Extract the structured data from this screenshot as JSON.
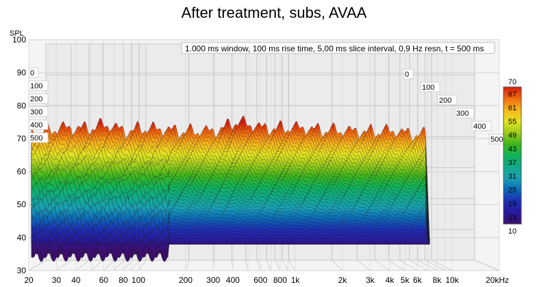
{
  "chart_data": {
    "type": "waterfall",
    "title": "After treatment, subs, AVAA",
    "ylabel": "SPL",
    "xlabel": "",
    "info_text": "1.000 ms window, 100 ms rise time, 5,00 ms slice interval, 0,9 Hz resn, t = 500 ms",
    "x_scale": "log",
    "xlim": [
      20,
      20000
    ],
    "ylim": [
      30,
      100
    ],
    "x_ticks": [
      {
        "value": 20,
        "label": "20"
      },
      {
        "value": 30,
        "label": "30"
      },
      {
        "value": 40,
        "label": "40"
      },
      {
        "value": 60,
        "label": "60"
      },
      {
        "value": 80,
        "label": "80"
      },
      {
        "value": 100,
        "label": "100"
      },
      {
        "value": 200,
        "label": "200"
      },
      {
        "value": 300,
        "label": "300"
      },
      {
        "value": 400,
        "label": "400"
      },
      {
        "value": 600,
        "label": "600"
      },
      {
        "value": 800,
        "label": "800"
      },
      {
        "value": 1000,
        "label": "1k"
      },
      {
        "value": 2000,
        "label": "2k"
      },
      {
        "value": 3000,
        "label": "3k"
      },
      {
        "value": 4000,
        "label": "4k"
      },
      {
        "value": 5000,
        "label": "5k"
      },
      {
        "value": 6000,
        "label": "6k"
      },
      {
        "value": 8000,
        "label": "8k"
      },
      {
        "value": 10000,
        "label": "10k"
      },
      {
        "value": 20000,
        "label": "20kHz"
      }
    ],
    "y_ticks": [
      30,
      40,
      50,
      60,
      70,
      80,
      90,
      100
    ],
    "time_axis_labels": [
      "0",
      "100",
      "200",
      "300",
      "400",
      "500"
    ],
    "colorbar": {
      "min_label": "10",
      "max_label": "70",
      "labels": [
        "67",
        "61",
        "55",
        "49",
        "43",
        "37",
        "31",
        "25",
        "19",
        "13"
      ],
      "colors": [
        "#d91c0b",
        "#f06a10",
        "#f5b61e",
        "#e4e223",
        "#9dcc1e",
        "#3fb51e",
        "#12b25a",
        "#12a98a",
        "#1aa0b4",
        "#0d68b6",
        "#1d2fb3",
        "#2a1a9d",
        "#3b0e6a"
      ]
    },
    "front_slice_peak_levels": [
      {
        "freq": 20,
        "spl": 71
      },
      {
        "freq": 30,
        "spl": 73
      },
      {
        "freq": 45,
        "spl": 73
      },
      {
        "freq": 60,
        "spl": 74
      },
      {
        "freq": 80,
        "spl": 72
      },
      {
        "freq": 100,
        "spl": 73
      },
      {
        "freq": 200,
        "spl": 72
      },
      {
        "freq": 300,
        "spl": 72
      },
      {
        "freq": 400,
        "spl": 75
      },
      {
        "freq": 600,
        "spl": 73
      },
      {
        "freq": 1000,
        "spl": 73
      },
      {
        "freq": 2000,
        "spl": 72
      },
      {
        "freq": 4000,
        "spl": 72
      },
      {
        "freq": 6000,
        "spl": 71
      }
    ],
    "end_frequency": 6500,
    "floor_spl": 38
  }
}
